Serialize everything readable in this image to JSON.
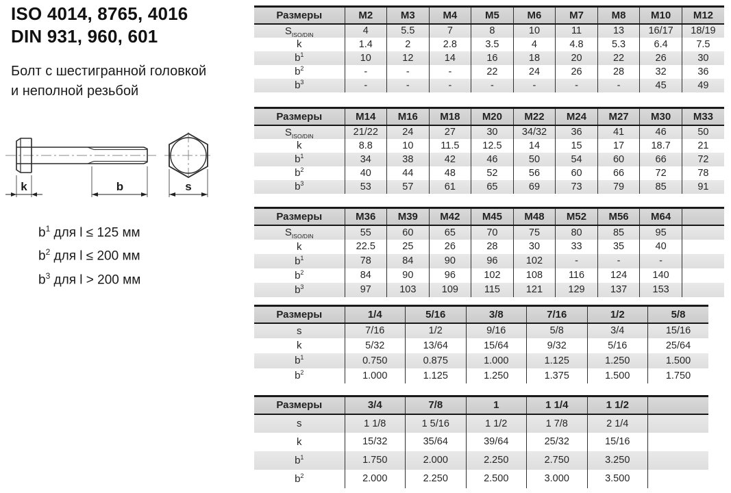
{
  "meta": {
    "colors": {
      "page_bg": "#ffffff",
      "table_header_bg": "#d2d2d2",
      "row_shade_bg": "#e3e3e3",
      "border": "#1a1a1a",
      "text": "#1d1d1d"
    }
  },
  "left": {
    "title_iso": "ISO 4014, 8765, 4016",
    "title_din": "DIN 931, 960, 601",
    "subtitle_line1": "Болт с шестигранной головкой",
    "subtitle_line2": "и неполной резьбой",
    "drawing": {
      "k_label": "k",
      "b_label": "b",
      "s_label": "s"
    },
    "notes": [
      {
        "base": "b",
        "sup": "1",
        "rest": " для l ≤ 125 мм"
      },
      {
        "base": "b",
        "sup": "2",
        "rest": " для l ≤ 200 мм"
      },
      {
        "base": "b",
        "sup": "3",
        "rest": " для l > 200 мм"
      }
    ]
  },
  "tables": [
    {
      "name": "metric-m2-m12",
      "header": [
        "Размеры",
        "M2",
        "M3",
        "M4",
        "M5",
        "M6",
        "M7",
        "M8",
        "M10",
        "M12"
      ],
      "rows": [
        {
          "label": {
            "base": "S",
            "sub": "ISO/DIN"
          },
          "values": [
            "4",
            "5.5",
            "7",
            "8",
            "10",
            "11",
            "13",
            "16/17",
            "18/19"
          ]
        },
        {
          "label": {
            "base": "k"
          },
          "values": [
            "1.4",
            "2",
            "2.8",
            "3.5",
            "4",
            "4.8",
            "5.3",
            "6.4",
            "7.5"
          ]
        },
        {
          "label": {
            "base": "b",
            "sup": "1"
          },
          "values": [
            "10",
            "12",
            "14",
            "16",
            "18",
            "20",
            "22",
            "26",
            "30"
          ]
        },
        {
          "label": {
            "base": "b",
            "sup": "2"
          },
          "values": [
            "-",
            "-",
            "-",
            "22",
            "24",
            "26",
            "28",
            "32",
            "36"
          ]
        },
        {
          "label": {
            "base": "b",
            "sup": "3"
          },
          "values": [
            "-",
            "-",
            "-",
            "-",
            "-",
            "-",
            "-",
            "45",
            "49"
          ]
        }
      ]
    },
    {
      "name": "metric-m14-m33",
      "header": [
        "Размеры",
        "M14",
        "M16",
        "M18",
        "M20",
        "M22",
        "M24",
        "M27",
        "M30",
        "M33"
      ],
      "rows": [
        {
          "label": {
            "base": "S",
            "sub": "ISO/DIN"
          },
          "values": [
            "21/22",
            "24",
            "27",
            "30",
            "34/32",
            "36",
            "41",
            "46",
            "50"
          ]
        },
        {
          "label": {
            "base": "k"
          },
          "values": [
            "8.8",
            "10",
            "11.5",
            "12.5",
            "14",
            "15",
            "17",
            "18.7",
            "21"
          ]
        },
        {
          "label": {
            "base": "b",
            "sup": "1"
          },
          "values": [
            "34",
            "38",
            "42",
            "46",
            "50",
            "54",
            "60",
            "66",
            "72"
          ]
        },
        {
          "label": {
            "base": "b",
            "sup": "2"
          },
          "values": [
            "40",
            "44",
            "48",
            "52",
            "56",
            "60",
            "66",
            "72",
            "78"
          ]
        },
        {
          "label": {
            "base": "b",
            "sup": "3"
          },
          "values": [
            "53",
            "57",
            "61",
            "65",
            "69",
            "73",
            "79",
            "85",
            "91"
          ]
        }
      ]
    },
    {
      "name": "metric-m36-m64",
      "header": [
        "Размеры",
        "M36",
        "M39",
        "M42",
        "M45",
        "M48",
        "M52",
        "M56",
        "M64",
        ""
      ],
      "rows": [
        {
          "label": {
            "base": "S",
            "sub": "ISO/DIN"
          },
          "values": [
            "55",
            "60",
            "65",
            "70",
            "75",
            "80",
            "85",
            "95",
            ""
          ]
        },
        {
          "label": {
            "base": "k"
          },
          "values": [
            "22.5",
            "25",
            "26",
            "28",
            "30",
            "33",
            "35",
            "40",
            ""
          ]
        },
        {
          "label": {
            "base": "b",
            "sup": "1"
          },
          "values": [
            "78",
            "84",
            "90",
            "96",
            "102",
            "-",
            "-",
            "-",
            ""
          ]
        },
        {
          "label": {
            "base": "b",
            "sup": "2"
          },
          "values": [
            "84",
            "90",
            "96",
            "102",
            "108",
            "116",
            "124",
            "140",
            ""
          ]
        },
        {
          "label": {
            "base": "b",
            "sup": "3"
          },
          "values": [
            "97",
            "103",
            "109",
            "115",
            "121",
            "129",
            "137",
            "153",
            ""
          ]
        }
      ]
    },
    {
      "name": "inch-quarter-to-fiveeighths",
      "header": [
        "Размеры",
        "1/4",
        "5/16",
        "3/8",
        "7/16",
        "1/2",
        "5/8"
      ],
      "rows": [
        {
          "label": {
            "base": "s"
          },
          "values": [
            "7/16",
            "1/2",
            "9/16",
            "5/8",
            "3/4",
            "15/16"
          ]
        },
        {
          "label": {
            "base": "k"
          },
          "values": [
            "5/32",
            "13/64",
            "15/64",
            "9/32",
            "5/16",
            "25/64"
          ]
        },
        {
          "label": {
            "base": "b",
            "sup": "1"
          },
          "values": [
            "0.750",
            "0.875",
            "1.000",
            "1.125",
            "1.250",
            "1.500"
          ]
        },
        {
          "label": {
            "base": "b",
            "sup": "2"
          },
          "values": [
            "1.000",
            "1.125",
            "1.250",
            "1.375",
            "1.500",
            "1.750"
          ]
        }
      ]
    },
    {
      "name": "inch-threequarters-to-oneandhalf",
      "header": [
        "Размеры",
        "3/4",
        "7/8",
        "1",
        "1 1/4",
        "1 1/2",
        ""
      ],
      "rows": [
        {
          "label": {
            "base": "s"
          },
          "values": [
            "1 1/8",
            "1 5/16",
            "1 1/2",
            "1 7/8",
            "2 1/4",
            ""
          ]
        },
        {
          "label": {
            "base": "k"
          },
          "values": [
            "15/32",
            "35/64",
            "39/64",
            "25/32",
            "15/16",
            ""
          ]
        },
        {
          "label": {
            "base": "b",
            "sup": "1"
          },
          "values": [
            "1.750",
            "2.000",
            "2.250",
            "2.750",
            "3.250",
            ""
          ]
        },
        {
          "label": {
            "base": "b",
            "sup": "2"
          },
          "values": [
            "2.000",
            "2.250",
            "2.500",
            "3.000",
            "3.500",
            ""
          ]
        }
      ]
    }
  ]
}
